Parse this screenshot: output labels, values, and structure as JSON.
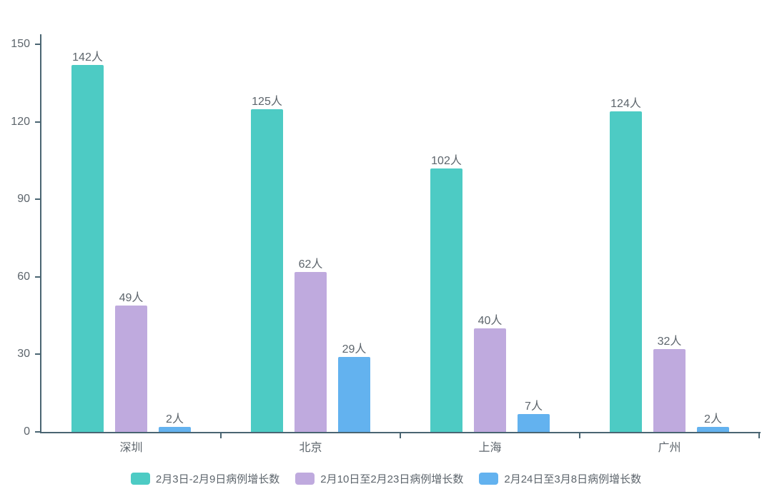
{
  "chart_data": {
    "type": "bar",
    "categories": [
      "深圳",
      "北京",
      "上海",
      "广州"
    ],
    "series": [
      {
        "name": "2月3日-2月9日病例增长数",
        "color": "#4dcbc4",
        "values": [
          142,
          125,
          102,
          124
        ]
      },
      {
        "name": "2月10日至2月23日病例增长数",
        "color": "#bfaade",
        "values": [
          49,
          62,
          40,
          32
        ]
      },
      {
        "name": "2月24日至3月8日病例增长数",
        "color": "#63b2ef",
        "values": [
          2,
          29,
          7,
          2
        ]
      }
    ],
    "value_suffix": "人",
    "ylim": [
      0,
      150
    ],
    "yticks": [
      0,
      30,
      60,
      90,
      120,
      150
    ],
    "grid": false,
    "legend_position": "bottom",
    "axis_color": "#4a6572",
    "text_color": "#5d656c"
  }
}
